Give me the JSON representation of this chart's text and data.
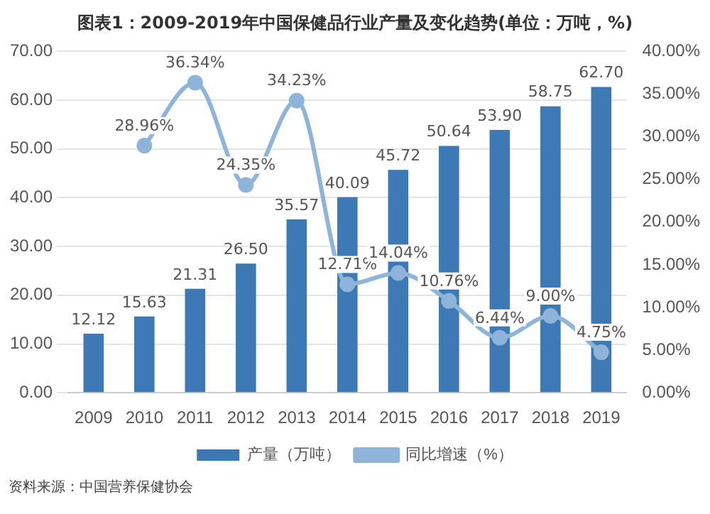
{
  "chart_data": {
    "type": "bar",
    "title": "图表1：2009-2019年中国保健品行业产量及变化趋势(单位：万吨，%)",
    "categories": [
      "2009",
      "2010",
      "2011",
      "2012",
      "2013",
      "2014",
      "2015",
      "2016",
      "2017",
      "2018",
      "2019"
    ],
    "series": [
      {
        "name": "产量（万吨）",
        "color": "#3d7ab5",
        "values": [
          12.12,
          15.63,
          21.31,
          26.5,
          35.57,
          40.09,
          45.72,
          50.64,
          53.9,
          58.75,
          62.7
        ],
        "value_labels": [
          "12.12",
          "15.63",
          "21.31",
          "26.50",
          "35.57",
          "40.09",
          "45.72",
          "50.64",
          "53.90",
          "58.75",
          "62.70"
        ]
      },
      {
        "name": "同比增速（%）",
        "type": "line",
        "axis": "y2",
        "color": "#8fb4d9",
        "marker": "circle",
        "values": [
          null,
          28.96,
          36.34,
          24.35,
          34.23,
          12.71,
          14.04,
          10.76,
          6.44,
          9.0,
          4.75
        ],
        "value_labels": [
          null,
          "28.96%",
          "36.34%",
          "24.35%",
          "34.23%",
          "12.71%",
          "14.04%",
          "10.76%",
          "6.44%",
          "9.00%",
          "4.75%"
        ]
      }
    ],
    "ylim": [
      0,
      70
    ],
    "yticks": [
      {
        "value": 0,
        "label": "0.00"
      },
      {
        "value": 10,
        "label": "10.00"
      },
      {
        "value": 20,
        "label": "20.00"
      },
      {
        "value": 30,
        "label": "30.00"
      },
      {
        "value": 40,
        "label": "40.00"
      },
      {
        "value": 50,
        "label": "50.00"
      },
      {
        "value": 60,
        "label": "60.00"
      },
      {
        "value": 70,
        "label": "70.00"
      }
    ],
    "y2lim": [
      0,
      40
    ],
    "y2ticks": [
      {
        "value": 0,
        "label": "0.00%"
      },
      {
        "value": 5,
        "label": "5.00%"
      },
      {
        "value": 10,
        "label": "10.00%"
      },
      {
        "value": 15,
        "label": "15.00%"
      },
      {
        "value": 20,
        "label": "20.00%"
      },
      {
        "value": 25,
        "label": "25.00%"
      },
      {
        "value": 30,
        "label": "30.00%"
      },
      {
        "value": 35,
        "label": "35.00%"
      },
      {
        "value": 40,
        "label": "40.00%"
      }
    ],
    "grid": "y",
    "legend": "bottom",
    "annotations": [
      "资料来源：中国营养保健协会"
    ]
  }
}
